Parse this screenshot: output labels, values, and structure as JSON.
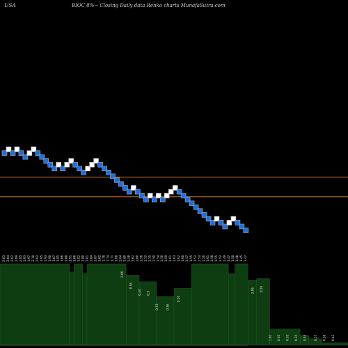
{
  "header": {
    "country": "USA",
    "subtitle": "BIOC 8%~  Closing Daily data  Renko  charts MunafaSutra.com"
  },
  "colors": {
    "background": "#000000",
    "up_brick": "#ffffff",
    "down_brick": "#1e6fe0",
    "brick_border": "#b0b0b0",
    "reference_line": "#c8741e",
    "volume_fill": "#0f3d12",
    "volume_edge": "#2e6b2e"
  },
  "chart_data": {
    "type": "renko",
    "bricks": [
      {
        "col": 0,
        "level": 0,
        "dir": "down"
      },
      {
        "col": 1,
        "level": 1,
        "dir": "up"
      },
      {
        "col": 2,
        "level": 0,
        "dir": "down"
      },
      {
        "col": 3,
        "level": 1,
        "dir": "up"
      },
      {
        "col": 4,
        "level": 0,
        "dir": "down"
      },
      {
        "col": 5,
        "level": -1,
        "dir": "down"
      },
      {
        "col": 6,
        "level": 0,
        "dir": "up"
      },
      {
        "col": 7,
        "level": 1,
        "dir": "up"
      },
      {
        "col": 8,
        "level": 0,
        "dir": "down"
      },
      {
        "col": 9,
        "level": -1,
        "dir": "down"
      },
      {
        "col": 10,
        "level": -2,
        "dir": "down"
      },
      {
        "col": 11,
        "level": -3,
        "dir": "down"
      },
      {
        "col": 12,
        "level": -4,
        "dir": "down"
      },
      {
        "col": 13,
        "level": -3,
        "dir": "up"
      },
      {
        "col": 14,
        "level": -4,
        "dir": "down"
      },
      {
        "col": 15,
        "level": -3,
        "dir": "up"
      },
      {
        "col": 16,
        "level": -2,
        "dir": "up"
      },
      {
        "col": 17,
        "level": -3,
        "dir": "down"
      },
      {
        "col": 18,
        "level": -4,
        "dir": "down"
      },
      {
        "col": 19,
        "level": -5,
        "dir": "down"
      },
      {
        "col": 20,
        "level": -4,
        "dir": "up"
      },
      {
        "col": 21,
        "level": -3,
        "dir": "up"
      },
      {
        "col": 22,
        "level": -2,
        "dir": "up"
      },
      {
        "col": 23,
        "level": -3,
        "dir": "down"
      },
      {
        "col": 24,
        "level": -4,
        "dir": "down"
      },
      {
        "col": 25,
        "level": -5,
        "dir": "down"
      },
      {
        "col": 26,
        "level": -6,
        "dir": "down"
      },
      {
        "col": 27,
        "level": -7,
        "dir": "down"
      },
      {
        "col": 28,
        "level": -8,
        "dir": "down"
      },
      {
        "col": 29,
        "level": -9,
        "dir": "down"
      },
      {
        "col": 30,
        "level": -10,
        "dir": "down"
      },
      {
        "col": 31,
        "level": -9,
        "dir": "up"
      },
      {
        "col": 32,
        "level": -10,
        "dir": "down"
      },
      {
        "col": 33,
        "level": -11,
        "dir": "down"
      },
      {
        "col": 34,
        "level": -12,
        "dir": "down"
      },
      {
        "col": 35,
        "level": -11,
        "dir": "up"
      },
      {
        "col": 36,
        "level": -12,
        "dir": "down"
      },
      {
        "col": 37,
        "level": -11,
        "dir": "up"
      },
      {
        "col": 38,
        "level": -12,
        "dir": "down"
      },
      {
        "col": 39,
        "level": -11,
        "dir": "up"
      },
      {
        "col": 40,
        "level": -10,
        "dir": "up"
      },
      {
        "col": 41,
        "level": -9,
        "dir": "up"
      },
      {
        "col": 42,
        "level": -10,
        "dir": "down"
      },
      {
        "col": 43,
        "level": -11,
        "dir": "down"
      },
      {
        "col": 44,
        "level": -12,
        "dir": "down"
      },
      {
        "col": 45,
        "level": -13,
        "dir": "down"
      },
      {
        "col": 46,
        "level": -14,
        "dir": "down"
      },
      {
        "col": 47,
        "level": -15,
        "dir": "down"
      },
      {
        "col": 48,
        "level": -16,
        "dir": "down"
      },
      {
        "col": 49,
        "level": -17,
        "dir": "down"
      },
      {
        "col": 50,
        "level": -18,
        "dir": "down"
      },
      {
        "col": 51,
        "level": -17,
        "dir": "up"
      },
      {
        "col": 52,
        "level": -18,
        "dir": "down"
      },
      {
        "col": 53,
        "level": -19,
        "dir": "down"
      },
      {
        "col": 54,
        "level": -18,
        "dir": "up"
      },
      {
        "col": 55,
        "level": -17,
        "dir": "up"
      },
      {
        "col": 56,
        "level": -18,
        "dir": "down"
      },
      {
        "col": 57,
        "level": -19,
        "dir": "down"
      },
      {
        "col": 58,
        "level": -20,
        "dir": "down"
      }
    ],
    "reference_lines": [
      {
        "level": -6.2
      },
      {
        "level": -11.3
      }
    ],
    "price_labels": [
      "2.03",
      "2.04",
      "2.07",
      "2.09",
      "2.05",
      "1.93",
      "1.97",
      "2.10",
      "2.02",
      "1.95",
      "1.93",
      "1.90",
      "1.87",
      "1.85",
      "1.86",
      "1.88",
      "1.91",
      "1.86",
      "1.82",
      "1.80",
      "1.81",
      "1.84",
      "1.87",
      "1.82",
      "1.78",
      "1.74",
      "1.71",
      "1.68",
      "1.64",
      "1.60",
      "1.58",
      "1.62",
      "1.60",
      "1.56",
      "1.52",
      "1.55",
      "1.50",
      "1.54",
      "1.56",
      "1.59",
      "1.61",
      "1.63",
      "1.62",
      "1.60",
      "1.57",
      "1.55",
      "1.52",
      "1.54",
      "1.56",
      "1.61",
      "1.58",
      "1.55",
      "1.52",
      "1.49",
      "1.47",
      "1.50",
      "1.48",
      "1.45",
      "1.42"
    ],
    "volume_segments": [
      {
        "from": 0,
        "to": 31,
        "value": 1.0
      },
      {
        "from": 32,
        "to": 33,
        "value": 0.9
      },
      {
        "from": 34,
        "to": 37,
        "value": 1.0
      },
      {
        "from": 38,
        "to": 39,
        "value": 0.88
      },
      {
        "from": 40,
        "to": 57,
        "value": 1.0
      },
      {
        "from": 58,
        "to": 63,
        "value": 0.86
      },
      {
        "from": 64,
        "to": 71,
        "value": 0.78
      },
      {
        "from": 72,
        "to": 79,
        "value": 0.6
      },
      {
        "from": 80,
        "to": 87,
        "value": 0.7
      },
      {
        "from": 88,
        "to": 104,
        "value": 1.0
      },
      {
        "from": 105,
        "to": 107,
        "value": 0.88
      },
      {
        "from": 108,
        "to": 113,
        "value": 1.0
      },
      {
        "from": 114,
        "to": 117,
        "value": 0.8
      },
      {
        "from": 118,
        "to": 123,
        "value": 0.82
      },
      {
        "from": 124,
        "to": 137,
        "value": 0.2
      },
      {
        "from": 138,
        "to": 141,
        "value": 0.12
      },
      {
        "from": 142,
        "to": 147,
        "value": 0.08
      },
      {
        "from": 148,
        "to": 159,
        "value": 0.03
      }
    ],
    "volume_labels": [
      {
        "pos": 56,
        "text": "2.06"
      },
      {
        "pos": 60,
        "text": "0.58"
      },
      {
        "pos": 64,
        "text": "0.44"
      },
      {
        "pos": 68,
        "text": "0.3"
      },
      {
        "pos": 72,
        "text": "0.53"
      },
      {
        "pos": 77,
        "text": "0.56"
      },
      {
        "pos": 82,
        "text": "0.56"
      },
      {
        "pos": 116,
        "text": "2.06"
      },
      {
        "pos": 120,
        "text": "0.56"
      },
      {
        "pos": 124,
        "text": "1.81"
      },
      {
        "pos": 128,
        "text": "0.35"
      },
      {
        "pos": 132,
        "text": "0.33"
      },
      {
        "pos": 136,
        "text": "0.35"
      },
      {
        "pos": 140,
        "text": "0.55"
      },
      {
        "pos": 145,
        "text": "0.57"
      },
      {
        "pos": 149,
        "text": "0.50"
      },
      {
        "pos": 153,
        "text": "0.42"
      }
    ]
  }
}
